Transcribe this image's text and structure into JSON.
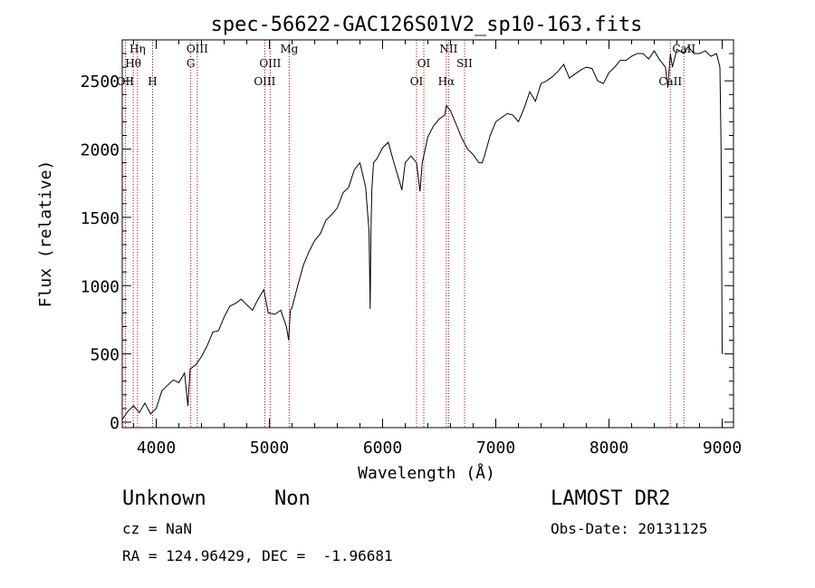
{
  "chart_data": {
    "type": "line",
    "title": "spec-56622-GAC126S01V2_sp10-163.fits",
    "xlabel": "Wavelength (Å)",
    "ylabel": "Flux (relative)",
    "xlim": [
      3700,
      9100
    ],
    "ylim": [
      -40,
      2800
    ],
    "xticks": [
      4000,
      5000,
      6000,
      7000,
      8000,
      9000
    ],
    "yticks": [
      0,
      500,
      1000,
      1500,
      2000,
      2500
    ],
    "grid": false,
    "series": [
      {
        "x": [
          3700,
          3750,
          3800,
          3850,
          3900,
          3950,
          4000,
          4050,
          4100,
          4150,
          4200,
          4250,
          4280,
          4300,
          4350,
          4400,
          4450,
          4500,
          4550,
          4600,
          4650,
          4700,
          4750,
          4800,
          4850,
          4900,
          4950,
          4990,
          5050,
          5100,
          5150,
          5170,
          5185,
          5200,
          5250,
          5300,
          5350,
          5400,
          5450,
          5500,
          5550,
          5600,
          5650,
          5700,
          5750,
          5800,
          5850,
          5880,
          5890,
          5896,
          5905,
          5920,
          5950,
          6000,
          6050,
          6100,
          6150,
          6170,
          6200,
          6250,
          6300,
          6330,
          6350,
          6400,
          6450,
          6500,
          6550,
          6563,
          6600,
          6650,
          6700,
          6750,
          6800,
          6850,
          6880,
          6900,
          6950,
          7000,
          7050,
          7100,
          7150,
          7200,
          7250,
          7300,
          7350,
          7400,
          7450,
          7500,
          7550,
          7600,
          7650,
          7700,
          7750,
          7800,
          7850,
          7900,
          7950,
          8000,
          8050,
          8100,
          8150,
          8200,
          8250,
          8300,
          8350,
          8400,
          8450,
          8498,
          8520,
          8542,
          8560,
          8600,
          8662,
          8700,
          8750,
          8800,
          8850,
          8900,
          8950,
          8980,
          8990,
          9000
        ],
        "y": [
          20,
          80,
          120,
          70,
          140,
          60,
          100,
          230,
          270,
          310,
          290,
          360,
          120,
          390,
          420,
          480,
          560,
          660,
          670,
          770,
          850,
          870,
          900,
          860,
          820,
          900,
          970,
          800,
          790,
          820,
          700,
          600,
          820,
          840,
          1000,
          1150,
          1250,
          1330,
          1380,
          1480,
          1520,
          1570,
          1680,
          1720,
          1850,
          1900,
          1720,
          1400,
          830,
          1350,
          1700,
          1900,
          1930,
          2010,
          2050,
          1900,
          1760,
          1700,
          1900,
          1950,
          1900,
          1690,
          1900,
          2090,
          2170,
          2220,
          2250,
          2320,
          2280,
          2180,
          2080,
          2000,
          1960,
          1900,
          1900,
          1950,
          2100,
          2200,
          2230,
          2260,
          2250,
          2200,
          2300,
          2420,
          2350,
          2480,
          2500,
          2530,
          2570,
          2620,
          2520,
          2550,
          2580,
          2600,
          2590,
          2500,
          2480,
          2560,
          2600,
          2650,
          2650,
          2680,
          2700,
          2700,
          2660,
          2720,
          2650,
          2600,
          2450,
          2700,
          2600,
          2730,
          2700,
          2750,
          2700,
          2700,
          2720,
          2680,
          2700,
          2600,
          2000,
          500
        ]
      }
    ],
    "lines": [
      {
        "label": "Hη",
        "x": 3835
      },
      {
        "label": "Hθ",
        "x": 3797
      },
      {
        "label": "OII",
        "x": 3727
      },
      {
        "label": "H",
        "x": 3968
      },
      {
        "label": "OIII",
        "x": 4363
      },
      {
        "label": "G",
        "x": 4305
      },
      {
        "label": "OIII",
        "x": 5007
      },
      {
        "label": "OIII",
        "x": 4959
      },
      {
        "label": "Mg",
        "x": 5175
      },
      {
        "label": "OI",
        "x": 6364
      },
      {
        "label": "OI",
        "x": 6300
      },
      {
        "label": "NII",
        "x": 6583
      },
      {
        "label": "Hα",
        "x": 6563
      },
      {
        "label": "SII",
        "x": 6724
      },
      {
        "label": "CaII",
        "x": 8542
      },
      {
        "label": "CaII",
        "x": 8662
      }
    ],
    "colors": {
      "spectrum": "#000000",
      "lines": "#cc0000",
      "axes": "#000000"
    }
  },
  "info": {
    "obj_class": "Unknown",
    "obj_subclass": "Non",
    "survey": "LAMOST DR2",
    "cz": "cz = NaN",
    "obs_date": "Obs-Date: 20131125",
    "radec": "RA = 124.96429, DEC =  -1.96681"
  }
}
